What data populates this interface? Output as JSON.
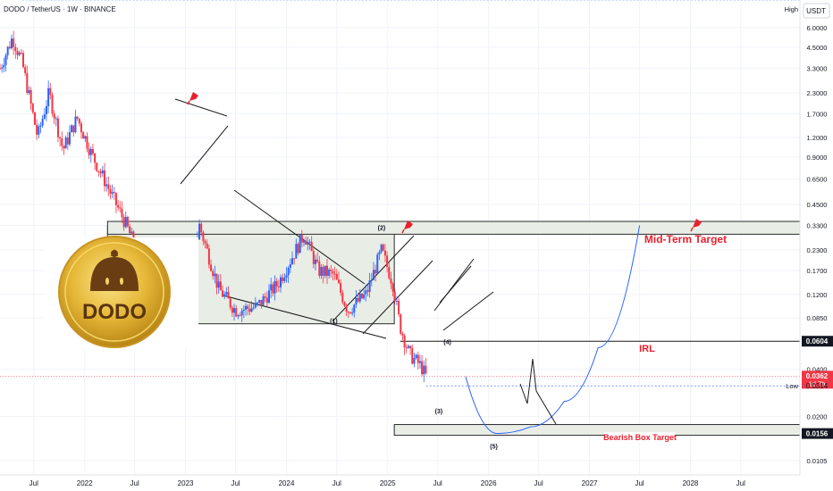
{
  "header": {
    "symbol_title": "DODO / TetherUS · 1W · BINANCE",
    "currency_badge": "USDT"
  },
  "logo": {
    "text": "DODO"
  },
  "price_axis": {
    "high_label": "High",
    "low_label": "Low",
    "ticks": [
      "6.0000",
      "4.5000",
      "3.3000",
      "2.3000",
      "1.7000",
      "1.2000",
      "0.9000",
      "0.6500",
      "0.4500",
      "0.3300",
      "0.2300",
      "0.1700",
      "0.1200",
      "0.0850",
      "0.0400",
      "0.0200",
      "0.0105"
    ],
    "tick_values": [
      6.0,
      4.5,
      3.3,
      2.3,
      1.7,
      1.2,
      0.9,
      0.65,
      0.45,
      0.33,
      0.23,
      0.17,
      0.12,
      0.085,
      0.04,
      0.02,
      0.0105
    ],
    "irl_badge": "0.0604",
    "current_price_badge": "0.0362",
    "countdown": "1d 7h",
    "low_value": "0.0314",
    "bearish_badge": "0.0156"
  },
  "time_axis": {
    "labels": [
      "Jul",
      "2022",
      "Jul",
      "2023",
      "Jul",
      "2024",
      "Jul",
      "2025",
      "Jul",
      "2026",
      "Jul",
      "2027",
      "Jul",
      "2028",
      "Jul"
    ]
  },
  "annotations": {
    "mid_term_target": "Mid-Term Target",
    "irl": "IRL",
    "bearish_box_target": "Bearish Box Target",
    "wave_1": "(1)",
    "wave_2": "(2)",
    "wave_3": "(3)",
    "wave_4": "(4)",
    "wave_5": "(5)"
  },
  "colors": {
    "up": "#2962ff",
    "down": "#f23645",
    "accent": "#2962ff",
    "current_price": "#f23645",
    "annotation_text": "#e8212e",
    "range_box": "#e8ede6",
    "logo_gold": "#e6b838"
  },
  "chart_data": {
    "type": "candlestick",
    "title": "DODO / TetherUS · 1W · BINANCE",
    "y_scale": "log",
    "ylim": [
      0.0085,
      9.0
    ],
    "xlim": [
      "2021-03-01",
      "2029-01-31"
    ],
    "price_series": {
      "x": [
        "2021-03-01",
        "2021-04-15",
        "2021-05-20",
        "2021-07-15",
        "2021-08-25",
        "2021-10-15",
        "2021-12-05",
        "2022-01-25",
        "2022-04-01",
        "2022-06-01",
        "2022-08-25",
        "2022-11-10",
        "2023-01-10",
        "2023-02-20",
        "2023-05-01",
        "2023-07-01",
        "2023-09-15",
        "2023-12-01",
        "2024-03-05",
        "2024-04-25",
        "2024-06-20",
        "2024-08-10",
        "2024-10-15",
        "2024-12-10",
        "2025-01-20",
        "2025-02-15",
        "2025-03-20",
        "2025-05-01",
        "2025-05-20"
      ],
      "y": [
        3.3,
        5.2,
        3.6,
        1.2,
        2.3,
        1.0,
        1.6,
        0.95,
        0.55,
        0.33,
        0.14,
        0.1,
        0.12,
        0.33,
        0.13,
        0.095,
        0.1,
        0.14,
        0.29,
        0.17,
        0.16,
        0.095,
        0.12,
        0.23,
        0.14,
        0.075,
        0.05,
        0.042,
        0.036
      ]
    },
    "price_levels": {
      "high": 9.0,
      "irl": 0.0604,
      "current": 0.0362,
      "low": 0.0314,
      "bearish_box_target": 0.0156
    },
    "range_box": {
      "x": [
        "2022-03-25",
        "2025-01-25"
      ],
      "y": [
        0.078,
        0.33
      ]
    },
    "mid_term_target_zone": {
      "x": [
        "2022-03-25",
        "2029-01-31"
      ],
      "y": [
        0.29,
        0.35
      ]
    },
    "bearish_box_zone": {
      "x": [
        "2025-01-25",
        "2029-01-31"
      ],
      "y": [
        0.0152,
        0.0178
      ]
    },
    "projection": {
      "x": [
        "2025-05-20",
        "2025-07-01",
        "2025-08-05",
        "2025-10-10",
        "2026-02-01",
        "2026-06-01",
        "2026-10-01",
        "2027-02-01",
        "2027-07-01"
      ],
      "y": [
        0.036,
        0.026,
        0.052,
        0.036,
        0.0156,
        0.0172,
        0.025,
        0.055,
        0.33
      ]
    },
    "wave_labels": [
      {
        "label": "(1)",
        "x": "2024-06-20",
        "y": 0.0785
      },
      {
        "label": "(2)",
        "x": "2024-12-10",
        "y": 0.31
      },
      {
        "label": "(3)",
        "x": "2025-07-05",
        "y": 0.021
      },
      {
        "label": "(4)",
        "x": "2025-08-05",
        "y": 0.058
      },
      {
        "label": "(5)",
        "x": "2026-01-20",
        "y": 0.0125
      }
    ]
  }
}
